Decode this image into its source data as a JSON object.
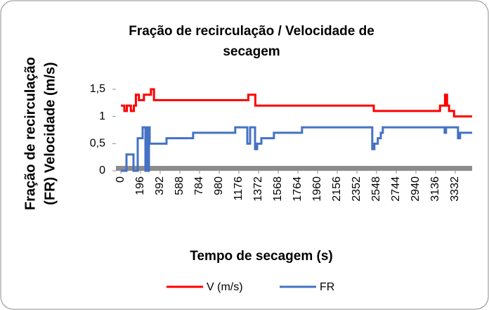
{
  "chart_data": {
    "type": "line",
    "title": [
      "Fração de recirculação / Velocidade de",
      "secagem"
    ],
    "x_label": "Tempo de secagem (s)",
    "y_label": [
      "Fração de recirculação",
      "(FR)  Velocidade (m/s)"
    ],
    "xlim": [
      0,
      3500
    ],
    "xticks": [
      0,
      196,
      392,
      588,
      784,
      980,
      1176,
      1372,
      1568,
      1764,
      1960,
      2156,
      2352,
      2548,
      2744,
      2940,
      3136,
      3332
    ],
    "ylim": [
      0,
      1.5
    ],
    "yticks": [
      0,
      {
        "value": 0.5,
        "label": "0,5"
      },
      1,
      {
        "value": 1.5,
        "label": "1,5"
      }
    ],
    "legend": "bottom",
    "series": [
      {
        "name": "V (m/s)",
        "color": "#ff0000",
        "x": [
          0,
          35,
          35,
          60,
          60,
          100,
          100,
          130,
          130,
          150,
          150,
          180,
          180,
          230,
          230,
          260,
          260,
          300,
          300,
          330,
          330,
          1270,
          1270,
          1340,
          1340,
          2520,
          2520,
          3180,
          3180,
          3230,
          3230,
          3250,
          3250,
          3270,
          3270,
          3290,
          3290,
          3320,
          3320,
          3500
        ],
        "values": [
          1.2,
          1.2,
          1.1,
          1.1,
          1.2,
          1.2,
          1.1,
          1.1,
          1.2,
          1.2,
          1.4,
          1.4,
          1.3,
          1.3,
          1.4,
          1.4,
          1.4,
          1.4,
          1.5,
          1.5,
          1.3,
          1.3,
          1.4,
          1.4,
          1.2,
          1.2,
          1.1,
          1.1,
          1.2,
          1.2,
          1.4,
          1.4,
          1.2,
          1.2,
          1.1,
          1.1,
          1.1,
          1.1,
          1.0,
          1.0
        ]
      },
      {
        "name": "FR",
        "color": "#4472c4",
        "x": [
          0,
          56,
          56,
          126,
          126,
          168,
          168,
          217,
          217,
          245,
          245,
          255,
          255,
          266,
          266,
          280,
          280,
          287,
          287,
          455,
          455,
          720,
          720,
          1140,
          1140,
          1260,
          1260,
          1288,
          1288,
          1337,
          1337,
          1358,
          1358,
          1400,
          1400,
          1525,
          1525,
          1805,
          1805,
          2505,
          2505,
          2526,
          2526,
          2560,
          2560,
          2590,
          2590,
          2610,
          2610,
          3226,
          3226,
          3240,
          3240,
          3359,
          3359,
          3380,
          3380,
          3415,
          3415,
          3500
        ],
        "values": [
          0,
          0,
          0.3,
          0.3,
          0,
          0,
          0.6,
          0.6,
          0.8,
          0.8,
          0,
          0,
          0.8,
          0.8,
          0,
          0,
          0.8,
          0.8,
          0.5,
          0.5,
          0.6,
          0.6,
          0.7,
          0.7,
          0.8,
          0.8,
          0.5,
          0.5,
          0.8,
          0.8,
          0.4,
          0.4,
          0.5,
          0.5,
          0.6,
          0.6,
          0.7,
          0.7,
          0.8,
          0.8,
          0.4,
          0.4,
          0.5,
          0.5,
          0.6,
          0.6,
          0.7,
          0.7,
          0.8,
          0.8,
          0.7,
          0.7,
          0.8,
          0.8,
          0.6,
          0.6,
          0.7,
          0.7,
          0.7,
          0.7
        ]
      }
    ]
  }
}
